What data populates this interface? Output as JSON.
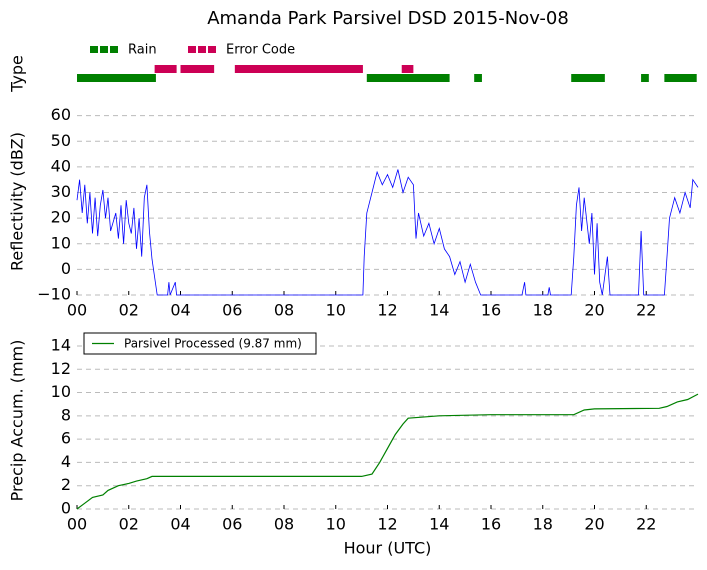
{
  "chart_data": [
    {
      "type": "timeline",
      "title": "Amanda Park Parsivel DSD 2015-Nov-08",
      "ylabel": "Type",
      "xlim": [
        0,
        24
      ],
      "series": [
        {
          "name": "Rain",
          "color": "#008000",
          "ranges": [
            [
              0,
              3.05
            ],
            [
              11.2,
              14.4
            ],
            [
              15.35,
              15.65
            ],
            [
              19.1,
              20.4
            ],
            [
              21.8,
              22.1
            ],
            [
              22.7,
              23.95
            ]
          ]
        },
        {
          "name": "Error Code",
          "color": "#cc0055",
          "ranges": [
            [
              3.0,
              3.85
            ],
            [
              4.0,
              5.3
            ],
            [
              6.1,
              11.05
            ],
            [
              12.55,
              13.0
            ]
          ]
        }
      ]
    },
    {
      "type": "line",
      "ylabel": "Reflectivity (dBZ)",
      "xlim": [
        0,
        24
      ],
      "ylim": [
        -10,
        63
      ],
      "xticks": [
        {
          "value": 0,
          "label": "00"
        },
        {
          "value": 2,
          "label": "02"
        },
        {
          "value": 4,
          "label": "04"
        },
        {
          "value": 6,
          "label": "06"
        },
        {
          "value": 8,
          "label": "08"
        },
        {
          "value": 10,
          "label": "10"
        },
        {
          "value": 12,
          "label": "12"
        },
        {
          "value": 14,
          "label": "14"
        },
        {
          "value": 16,
          "label": "16"
        },
        {
          "value": 18,
          "label": "18"
        },
        {
          "value": 20,
          "label": "20"
        },
        {
          "value": 22,
          "label": "22"
        }
      ],
      "yticks": [
        {
          "value": -10,
          "label": "−10"
        },
        0,
        10,
        20,
        30,
        40,
        50,
        60
      ],
      "grid": true,
      "x": [
        0,
        0.1,
        0.2,
        0.3,
        0.4,
        0.5,
        0.6,
        0.7,
        0.8,
        0.9,
        1.0,
        1.1,
        1.2,
        1.3,
        1.5,
        1.6,
        1.7,
        1.8,
        1.9,
        2.0,
        2.1,
        2.2,
        2.3,
        2.4,
        2.5,
        2.6,
        2.7,
        2.8,
        2.9,
        3.0,
        3.1,
        3.5,
        3.55,
        3.6,
        3.8,
        3.85,
        11.05,
        11.1,
        11.2,
        11.4,
        11.6,
        11.8,
        12.0,
        12.2,
        12.4,
        12.6,
        12.8,
        13.0,
        13.1,
        13.2,
        13.4,
        13.6,
        13.8,
        14.0,
        14.2,
        14.4,
        14.6,
        14.8,
        15.0,
        15.2,
        15.4,
        15.6,
        17.2,
        17.3,
        17.35,
        18.2,
        18.25,
        18.3,
        19.1,
        19.2,
        19.3,
        19.4,
        19.5,
        19.6,
        19.8,
        19.9,
        20.0,
        20.1,
        20.2,
        20.3,
        20.5,
        20.6,
        21.7,
        21.8,
        21.9,
        22.7,
        22.8,
        22.9,
        23.1,
        23.3,
        23.5,
        23.7,
        23.8,
        24
      ],
      "series": [
        {
          "color": "#0000ff",
          "values": [
            27,
            35,
            22,
            33,
            18,
            30,
            14,
            28,
            13,
            25,
            31,
            20,
            28,
            15,
            22,
            12,
            25,
            10,
            27,
            18,
            14,
            24,
            8,
            20,
            5,
            28,
            33,
            15,
            4,
            -3,
            -10,
            -10,
            -5,
            -10,
            -5,
            -10,
            -10,
            5,
            22,
            30,
            38,
            33,
            37,
            32,
            39,
            30,
            36,
            33,
            12,
            22,
            13,
            18,
            10,
            16,
            8,
            5,
            -2,
            3,
            -5,
            2,
            -5,
            -10,
            -10,
            -5,
            -10,
            -10,
            -7,
            -10,
            -10,
            5,
            25,
            32,
            15,
            28,
            10,
            22,
            -2,
            18,
            -5,
            -10,
            5,
            -10,
            -10,
            15,
            -10,
            -10,
            5,
            20,
            28,
            22,
            30,
            24,
            35,
            32
          ]
        }
      ]
    },
    {
      "type": "line",
      "ylabel": "Precip Accum. (mm)",
      "xlabel": "Hour (UTC)",
      "xlim": [
        0,
        24
      ],
      "ylim": [
        0,
        15.2
      ],
      "xticks": [
        {
          "value": 0,
          "label": "00"
        },
        {
          "value": 2,
          "label": "02"
        },
        {
          "value": 4,
          "label": "04"
        },
        {
          "value": 6,
          "label": "06"
        },
        {
          "value": 8,
          "label": "08"
        },
        {
          "value": 10,
          "label": "10"
        },
        {
          "value": 12,
          "label": "12"
        },
        {
          "value": 14,
          "label": "14"
        },
        {
          "value": 16,
          "label": "16"
        },
        {
          "value": 18,
          "label": "18"
        },
        {
          "value": 20,
          "label": "20"
        },
        {
          "value": 22,
          "label": "22"
        }
      ],
      "yticks": [
        0,
        2,
        4,
        6,
        8,
        10,
        12,
        14
      ],
      "grid": true,
      "legend": "upper left",
      "x": [
        0,
        0.3,
        0.6,
        1.0,
        1.2,
        1.6,
        2.0,
        2.3,
        2.7,
        2.9,
        11.0,
        11.4,
        11.7,
        12.0,
        12.3,
        12.6,
        12.8,
        14.0,
        16,
        19.2,
        19.6,
        20,
        22.5,
        22.8,
        23.2,
        23.6,
        24
      ],
      "series": [
        {
          "name": "Parsivel Processed (9.87 mm)",
          "color": "#008000",
          "values": [
            0,
            0.5,
            1.0,
            1.2,
            1.6,
            2.0,
            2.2,
            2.4,
            2.6,
            2.8,
            2.8,
            3.0,
            4.0,
            5.2,
            6.4,
            7.3,
            7.8,
            8.0,
            8.1,
            8.1,
            8.5,
            8.6,
            8.65,
            8.8,
            9.2,
            9.4,
            9.87
          ]
        }
      ]
    }
  ]
}
